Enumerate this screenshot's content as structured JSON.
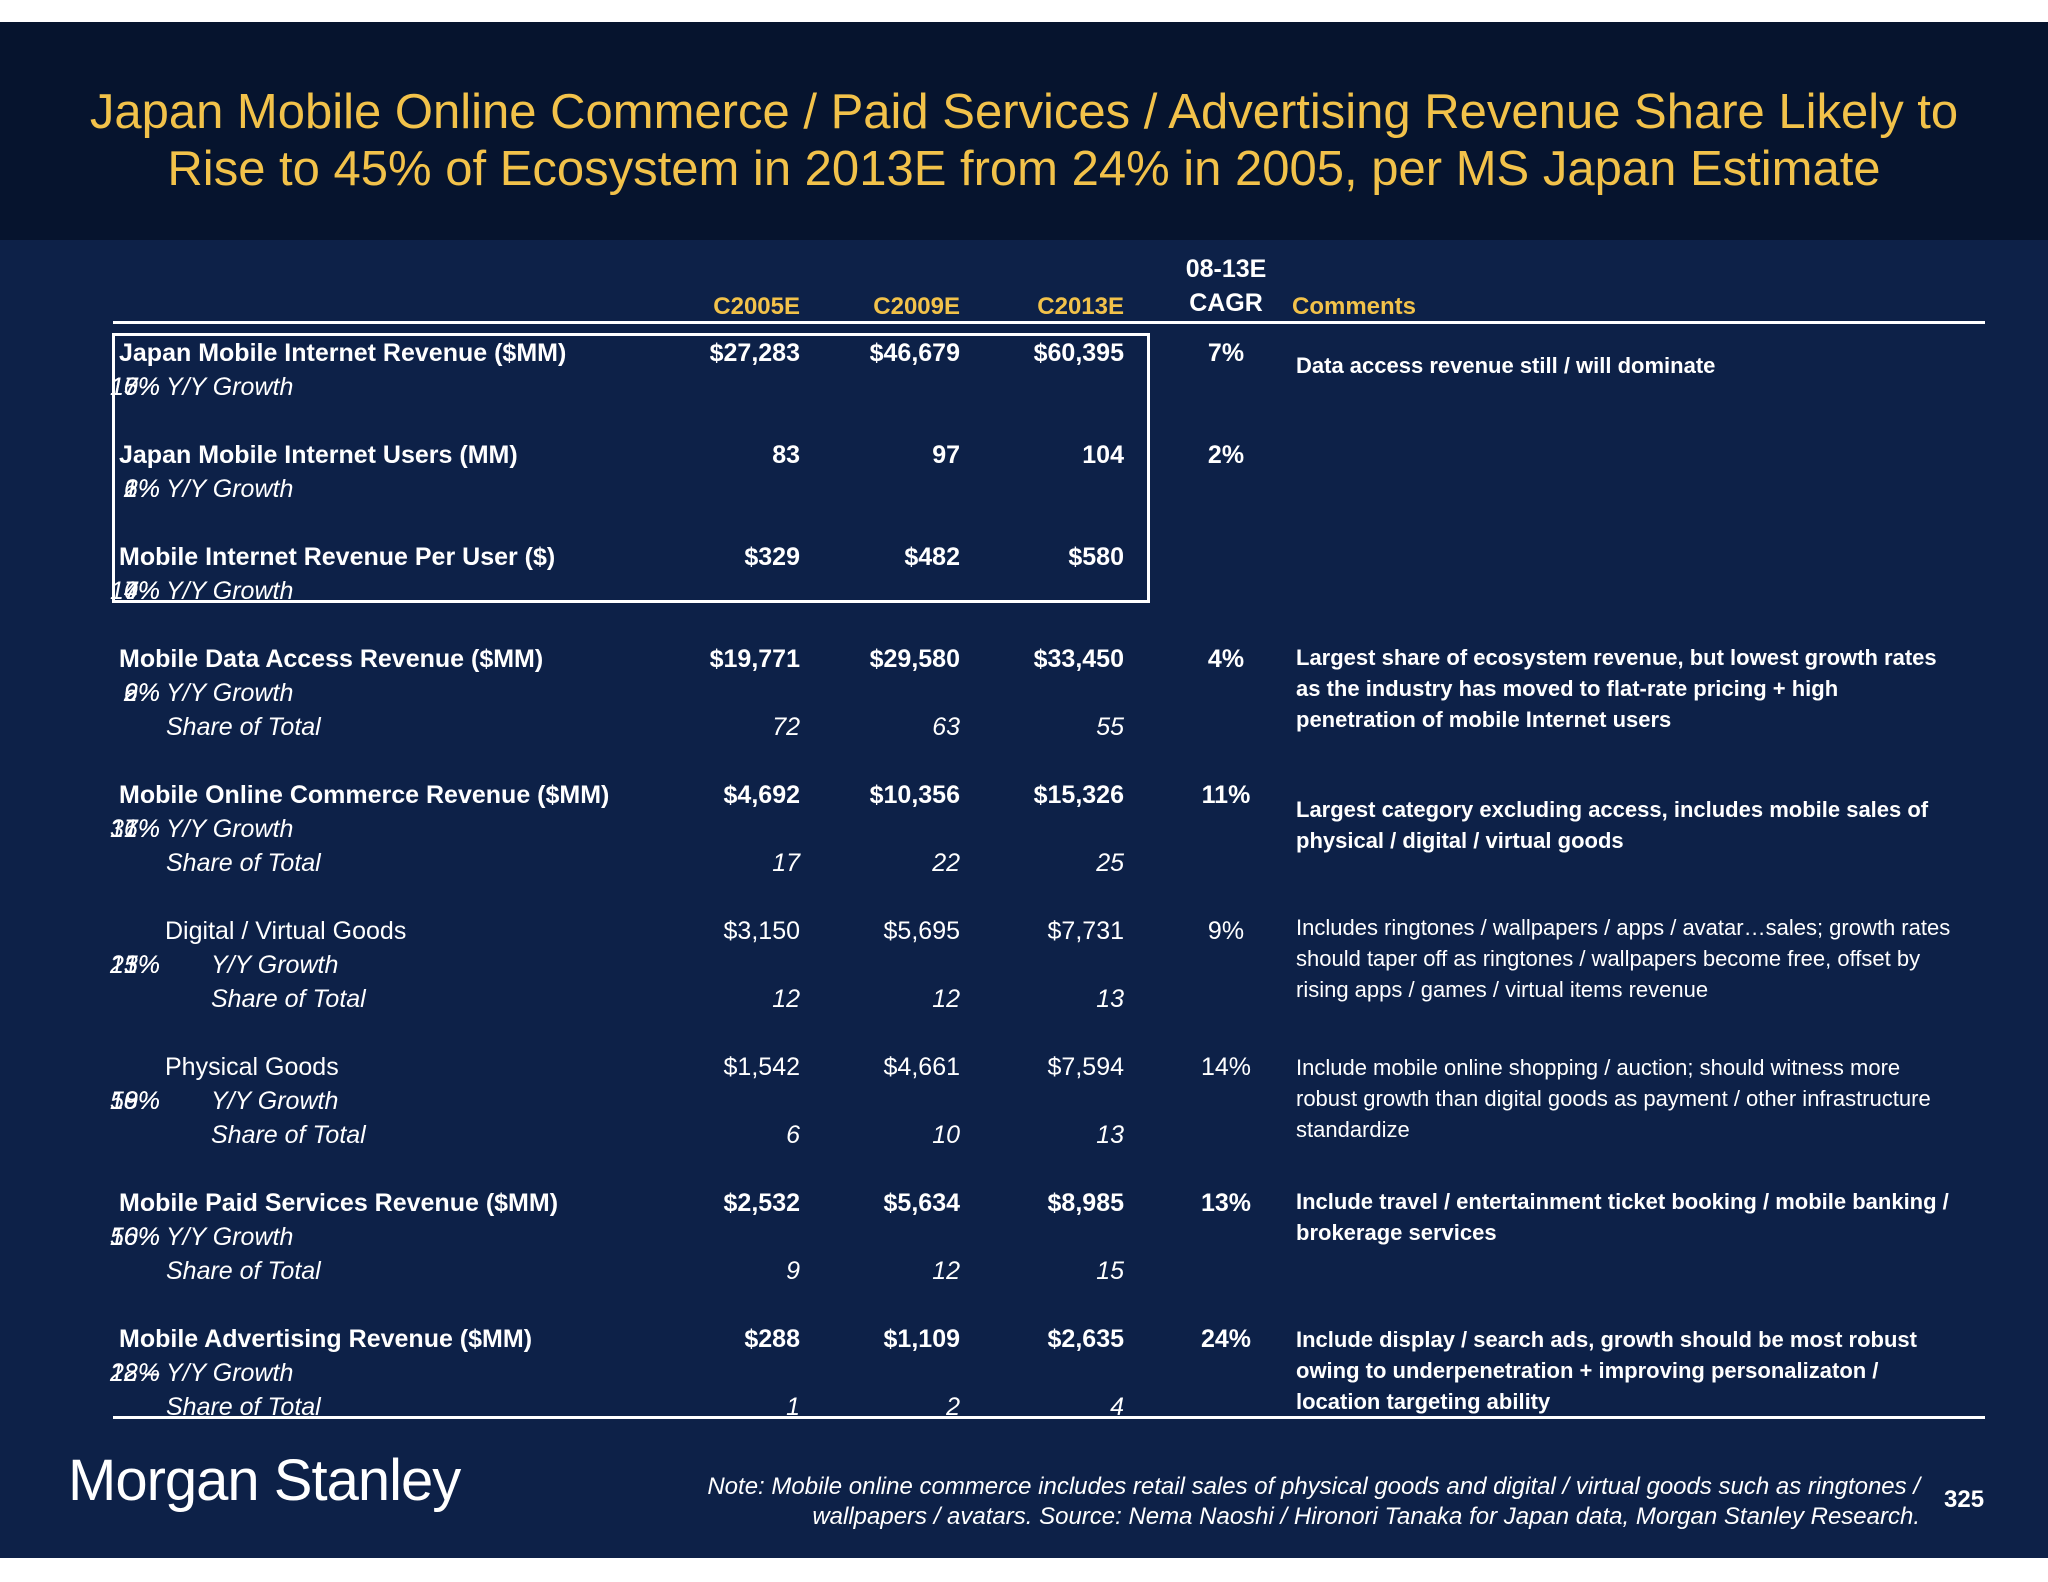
{
  "title": {
    "line1": "Japan Mobile Online Commerce / Paid Services / Advertising Revenue Share Likely to",
    "line2": "Rise to 45% of Ecosystem in 2013E from 24% in 2005, per MS Japan Estimate"
  },
  "headers": {
    "c2005": "C2005E",
    "c2009": "C2009E",
    "c2013": "C2013E",
    "cagr_top": "08-13E",
    "cagr_bottom": "CAGR",
    "comments": "Comments"
  },
  "rows": [
    {
      "label": "Japan Mobile Internet Revenue ($MM)",
      "v1": "$27,283",
      "v2": "$46,679",
      "v3": "$60,395",
      "cagr": "7%"
    },
    {
      "label": "Y/Y Growth",
      "v1": "17%",
      "v2": "10%",
      "v3": "5%"
    },
    {
      "label": "Japan Mobile Internet Users (MM)",
      "v1": "83",
      "v2": "97",
      "v3": "104",
      "cagr": "2%"
    },
    {
      "label": "Y/Y Growth",
      "v1": "6%",
      "v2": "2%",
      "v3": "1%"
    },
    {
      "label": "Mobile Internet Revenue Per User ($)",
      "v1": "$329",
      "v2": "$482",
      "v3": "$580"
    },
    {
      "label": "Y/Y Growth",
      "v1": "10%",
      "v2": "7%",
      "v3": "4%"
    },
    {
      "label": "Mobile Data Access Revenue ($MM)",
      "v1": "$19,771",
      "v2": "$29,580",
      "v3": "$33,450",
      "cagr": "4%"
    },
    {
      "label": "Y/Y Growth",
      "v1": "9%",
      "v2": "6%",
      "v3": "2%"
    },
    {
      "label": "Share of Total",
      "v1": "72",
      "v2": "63",
      "v3": "55"
    },
    {
      "label": "Mobile Online Commerce Revenue ($MM)",
      "v1": "$4,692",
      "v2": "$10,356",
      "v3": "$15,326",
      "cagr": "11%"
    },
    {
      "label": "Y/Y Growth",
      "v1": "31%",
      "v2": "16%",
      "v3": "7%"
    },
    {
      "label": "Share of Total",
      "v1": "17",
      "v2": "22",
      "v3": "25"
    },
    {
      "label": "Digital / Virtual Goods",
      "v1": "$3,150",
      "v2": "$5,695",
      "v3": "$7,731",
      "cagr": "9%"
    },
    {
      "label": "Y/Y Growth",
      "v1": "21%",
      "v2": "15%",
      "v3": "3%"
    },
    {
      "label": "Share of Total",
      "v1": "12",
      "v2": "12",
      "v3": "13"
    },
    {
      "label": "Physical Goods",
      "v1": "$1,542",
      "v2": "$4,661",
      "v3": "$7,594",
      "cagr": "14%"
    },
    {
      "label": "Y/Y Growth",
      "v1": "59%",
      "v2": "18%",
      "v3": "10%"
    },
    {
      "label": "Share of Total",
      "v1": "6",
      "v2": "10",
      "v3": "13"
    },
    {
      "label": "Mobile Paid Services Revenue ($MM)",
      "v1": "$2,532",
      "v2": "$5,634",
      "v3": "$8,985",
      "cagr": "13%"
    },
    {
      "label": "Y/Y Growth",
      "v1": "56%",
      "v2": "16%",
      "v3": "10%"
    },
    {
      "label": "Share of Total",
      "v1": "9",
      "v2": "12",
      "v3": "15"
    },
    {
      "label": "Mobile Advertising Revenue ($MM)",
      "v1": "$288",
      "v2": "$1,109",
      "v3": "$2,635",
      "cagr": "24%"
    },
    {
      "label": "Y/Y Growth",
      "v1": "--",
      "v2": "22%",
      "v3": "18%"
    },
    {
      "label": "Share of Total",
      "v1": "1",
      "v2": "2",
      "v3": "4"
    }
  ],
  "comments": {
    "internet_revenue": [
      "Data access revenue still / will dominate"
    ],
    "data_access": [
      "Largest share of ecosystem revenue, but lowest growth rates",
      "as the industry has moved to flat-rate pricing + high",
      "penetration of mobile Internet users"
    ],
    "online_commerce": [
      "Largest category excluding access, includes mobile sales of",
      "physical / digital / virtual goods"
    ],
    "digital_goods": [
      "Includes ringtones / wallpapers / apps / avatar…sales; growth rates",
      "should taper off as ringtones / wallpapers become free, offset by",
      "rising apps / games / virtual items revenue"
    ],
    "physical_goods": [
      "Include mobile online shopping / auction; should witness more",
      "robust growth than digital goods as payment / other infrastructure",
      "standardize"
    ],
    "paid_services": [
      "Include travel / entertainment ticket booking / mobile banking /",
      "brokerage services"
    ],
    "advertising": [
      "Include display / search ads, growth should be most robust",
      "owing to underpenetration + improving personalizaton /",
      "location targeting ability"
    ]
  },
  "footer": {
    "logo": "Morgan Stanley",
    "note_line1": "Note: Mobile online commerce includes retail sales of physical goods and digital / virtual goods such as ringtones /",
    "note_line2": "wallpapers / avatars. Source: Nema Naoshi / Hironori Tanaka for Japan data, Morgan Stanley Research.",
    "page_number": "325"
  }
}
